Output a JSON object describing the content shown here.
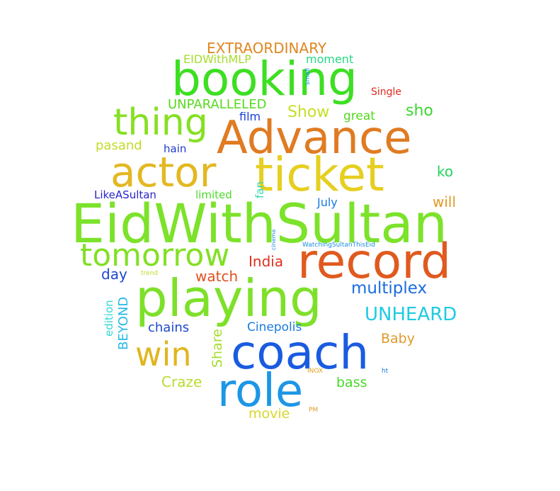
{
  "words": [
    {
      "text": "EidWithSultan",
      "color": "#7ce22a"
    },
    {
      "text": "Advance",
      "color": "#e07b22"
    },
    {
      "text": "booking",
      "color": "#3ddf22"
    },
    {
      "text": "ticket",
      "color": "#e6cf20"
    },
    {
      "text": "actor",
      "color": "#e3b821"
    },
    {
      "text": "record",
      "color": "#e05a1f"
    },
    {
      "text": "playing",
      "color": "#7ee02a"
    },
    {
      "text": "coach",
      "color": "#1a5be0"
    },
    {
      "text": "role",
      "color": "#1c96e6"
    },
    {
      "text": "thing",
      "color": "#86e022"
    },
    {
      "text": "tomorrow",
      "color": "#82e024"
    },
    {
      "text": "win",
      "color": "#e0b520"
    },
    {
      "text": "EXTRAORDINARY",
      "color": "#e0861f"
    },
    {
      "text": "EIDWithMLP",
      "color": "#a6dc2e"
    },
    {
      "text": "moment",
      "color": "#25d985"
    },
    {
      "text": "small",
      "color": "#1a8ce0"
    },
    {
      "text": "Single",
      "color": "#e02a1e"
    },
    {
      "text": "UNPARALLELED",
      "color": "#57d91e"
    },
    {
      "text": "Show",
      "color": "#c6df24"
    },
    {
      "text": "great",
      "color": "#53d81c"
    },
    {
      "text": "sho",
      "color": "#3dd630"
    },
    {
      "text": "film",
      "color": "#1a3fd6"
    },
    {
      "text": "pasand",
      "color": "#c3db28"
    },
    {
      "text": "hain",
      "color": "#1f3acf"
    },
    {
      "text": "ko",
      "color": "#24d45b"
    },
    {
      "text": "LikeASultan",
      "color": "#2a25c9"
    },
    {
      "text": "limited",
      "color": "#4bdb2a"
    },
    {
      "text": "fan",
      "color": "#31d7b4"
    },
    {
      "text": "July",
      "color": "#1a7ae0"
    },
    {
      "text": "will",
      "color": "#e09a22"
    },
    {
      "text": "cinema",
      "color": "#1c8ee0"
    },
    {
      "text": "WatchingSultanThisEid",
      "color": "#1c8ee0"
    },
    {
      "text": "India",
      "color": "#e0301f"
    },
    {
      "text": "day",
      "color": "#1c47cf"
    },
    {
      "text": "watch",
      "color": "#e0501f"
    },
    {
      "text": "trend",
      "color": "#c2dc27"
    },
    {
      "text": "multiplex",
      "color": "#1a6ce0"
    },
    {
      "text": "edition",
      "color": "#31d7d7"
    },
    {
      "text": "BEYOND",
      "color": "#25b8e8"
    },
    {
      "text": "UNHEARD",
      "color": "#1fcbe3"
    },
    {
      "text": "chains",
      "color": "#1c47cf"
    },
    {
      "text": "Share",
      "color": "#a6dc2e"
    },
    {
      "text": "Cinepolis",
      "color": "#1a7ae0"
    },
    {
      "text": "Baby",
      "color": "#e09a2b"
    },
    {
      "text": "INOX",
      "color": "#e0a020"
    },
    {
      "text": "ht",
      "color": "#1a7ae0"
    },
    {
      "text": "Craze",
      "color": "#b8dc2e"
    },
    {
      "text": "bass",
      "color": "#48d92a"
    },
    {
      "text": "movie",
      "color": "#d7d82a"
    },
    {
      "text": "PM",
      "color": "#e09a2b"
    }
  ]
}
